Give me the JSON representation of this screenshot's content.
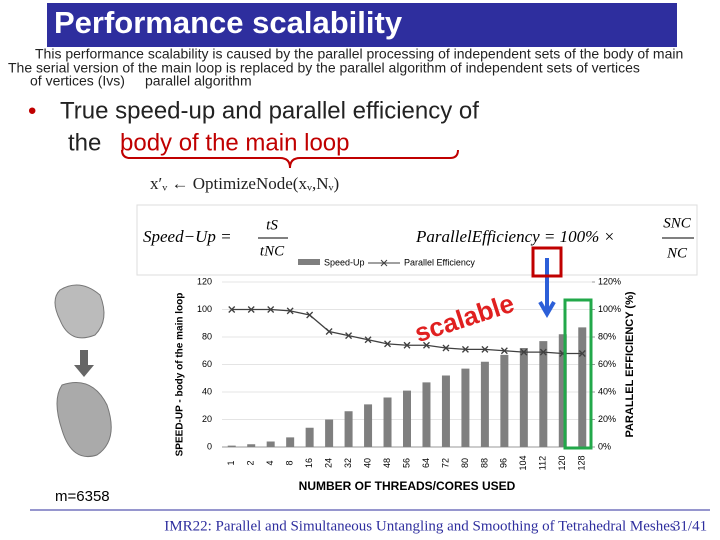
{
  "header": {
    "title": "Performance scalability",
    "overlay_lines": [
      "This performance scalability is caused by the parallel processing of independent sets of the body of main",
      "The serial version of the main loop is replaced by the parallel algorithm of independent sets of vertices",
      "of vertices (Ivs)",
      "parallel algorithm"
    ]
  },
  "bullet": {
    "line1": "True speed-up and parallel efficiency of",
    "line2_prefix": "the",
    "highlight": "body of the main loop"
  },
  "formula": {
    "assignment": "x′ᵥ ← OptimizeNode(xᵥ,Nᵥ)",
    "speedup_lhs": "Speed−Up =",
    "speedup_num": "tS",
    "speedup_den": "tNC",
    "efficiency_lhs": "ParallelEfficiency = 100% ×",
    "efficiency_num": "SNC",
    "efficiency_den": "NC"
  },
  "chart_data": {
    "type": "bar",
    "categories": [
      "1",
      "2",
      "4",
      "8",
      "16",
      "24",
      "32",
      "40",
      "48",
      "56",
      "64",
      "72",
      "80",
      "88",
      "96",
      "104",
      "112",
      "120",
      "128"
    ],
    "series": [
      {
        "name": "Speed-Up",
        "color": "#7f7f7f",
        "values": [
          1,
          2,
          4,
          7,
          14,
          20,
          26,
          31,
          36,
          41,
          47,
          52,
          57,
          62,
          67,
          72,
          77,
          82,
          87
        ]
      },
      {
        "name": "Parallel Efficiency",
        "color": "#404040",
        "axis": "y2",
        "values": [
          100,
          100,
          100,
          99,
          96,
          84,
          81,
          78,
          75,
          74,
          74,
          72,
          71,
          71,
          70,
          69,
          69,
          68,
          68
        ]
      }
    ],
    "ylim": [
      0,
      120
    ],
    "yticks": [
      0,
      20,
      40,
      60,
      80,
      100,
      120
    ],
    "y2lim": [
      0,
      120
    ],
    "y2ticks": [
      {
        "value": 0,
        "label": "0%"
      },
      {
        "value": 20,
        "label": "20%"
      },
      {
        "value": 40,
        "label": "40%"
      },
      {
        "value": 60,
        "label": "60%"
      },
      {
        "value": 80,
        "label": "80%"
      },
      {
        "value": 100,
        "label": "100%"
      },
      {
        "value": 120,
        "label": "120%"
      }
    ],
    "xlabel": "NUMBER OF THREADS/CORES USED",
    "ylabel": "SPEED-UP - body of the main loop",
    "y2label": "PARALLEL EFFICIENCY (%)",
    "annotation": "scalable"
  },
  "mesh_label": "m=6358",
  "footer": {
    "text": "IMR22: Parallel and Simultaneous Untangling and Smoothing of Tetrahedral Meshes",
    "page": "31/41"
  }
}
